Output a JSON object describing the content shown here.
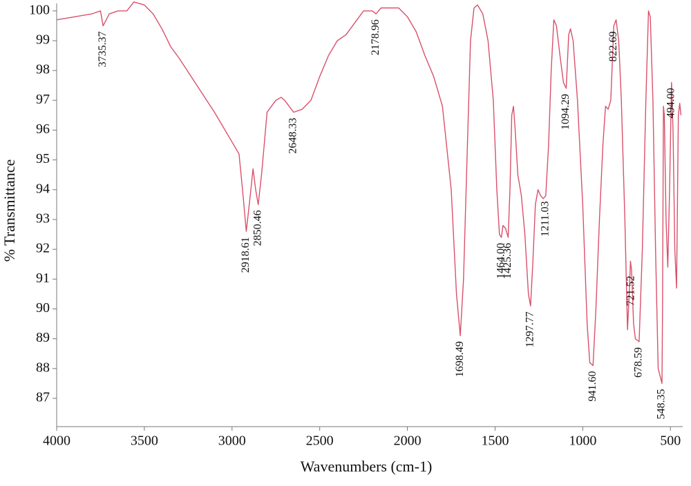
{
  "chart_data": {
    "type": "line",
    "xlabel": "Wavenumbers (cm-1)",
    "ylabel": "% Transmittance",
    "color": "#d9506a",
    "xlim": [
      4000,
      430
    ],
    "ylim": [
      86.05,
      100.25
    ],
    "xticks": [
      4000,
      3500,
      3000,
      2500,
      2000,
      1500,
      1000,
      500
    ],
    "yticks": [
      87,
      88,
      89,
      90,
      91,
      92,
      93,
      94,
      95,
      96,
      97,
      98,
      99,
      100
    ],
    "x": [
      4000,
      3900,
      3800,
      3750,
      3735.37,
      3700,
      3650,
      3600,
      3560,
      3500,
      3450,
      3400,
      3350,
      3300,
      3200,
      3100,
      3000,
      2960,
      2940,
      2918.61,
      2900,
      2880,
      2865,
      2850.46,
      2830,
      2800,
      2750,
      2720,
      2700,
      2648.33,
      2600,
      2550,
      2500,
      2450,
      2400,
      2350,
      2300,
      2250,
      2200,
      2178.96,
      2150,
      2100,
      2050,
      2000,
      1950,
      1900,
      1850,
      1800,
      1750,
      1720,
      1698.49,
      1680,
      1660,
      1640,
      1620,
      1600,
      1570,
      1540,
      1510,
      1490,
      1475,
      1464,
      1455,
      1440,
      1425.36,
      1415,
      1405,
      1395,
      1385,
      1370,
      1350,
      1330,
      1310,
      1297.77,
      1285,
      1270,
      1255,
      1240,
      1225,
      1211.03,
      1195,
      1180,
      1165,
      1150,
      1130,
      1110,
      1094.29,
      1080,
      1070,
      1055,
      1030,
      1000,
      975,
      960,
      941.6,
      925,
      905,
      885,
      870,
      855,
      840,
      822.69,
      810,
      795,
      780,
      760,
      745,
      735,
      728,
      721.52,
      710,
      700,
      678.59,
      660,
      640,
      625,
      615,
      600,
      585,
      570,
      548.35,
      545,
      540,
      535,
      525,
      515,
      505,
      494,
      485,
      475,
      465,
      455,
      447,
      440
    ],
    "values": [
      99.7,
      99.8,
      99.9,
      100.0,
      99.5,
      99.9,
      100.0,
      100.0,
      100.3,
      100.2,
      99.9,
      99.4,
      98.8,
      98.4,
      97.5,
      96.6,
      95.6,
      95.2,
      94.0,
      92.6,
      93.6,
      94.7,
      94.0,
      93.5,
      94.6,
      96.6,
      97.0,
      97.1,
      97.0,
      96.6,
      96.7,
      97.0,
      97.8,
      98.5,
      99.0,
      99.2,
      99.6,
      100.0,
      100.0,
      99.9,
      100.1,
      100.1,
      100.1,
      99.8,
      99.3,
      98.5,
      97.8,
      96.8,
      94.0,
      90.5,
      89.1,
      91.0,
      95.0,
      99.0,
      100.1,
      100.2,
      99.9,
      99.0,
      97.0,
      94.0,
      92.5,
      92.4,
      92.8,
      92.7,
      92.4,
      94.0,
      96.5,
      96.8,
      96.0,
      94.5,
      93.8,
      92.5,
      90.5,
      90.1,
      91.5,
      93.5,
      94.0,
      93.8,
      93.7,
      93.8,
      95.5,
      98.0,
      99.7,
      99.5,
      98.5,
      97.6,
      97.4,
      99.2,
      99.4,
      99.0,
      97.0,
      93.5,
      89.5,
      88.2,
      88.1,
      90.0,
      93.0,
      95.5,
      96.8,
      96.7,
      97.0,
      99.5,
      99.7,
      99.0,
      97.0,
      93.0,
      89.3,
      90.5,
      91.6,
      91.3,
      89.5,
      89.0,
      88.9,
      92.0,
      97.0,
      100.0,
      99.8,
      97.0,
      92.0,
      88.0,
      87.5,
      90.0,
      96.8,
      96.5,
      93.0,
      91.4,
      94.0,
      97.6,
      96.0,
      92.0,
      90.7,
      96.5,
      96.9,
      96.5
    ],
    "annotations": [
      {
        "x": 3735.37,
        "label": "3735.37"
      },
      {
        "x": 2918.61,
        "label": "2918.61"
      },
      {
        "x": 2850.46,
        "label": "2850.46"
      },
      {
        "x": 2648.33,
        "label": "2648.33"
      },
      {
        "x": 2178.96,
        "label": "2178.96"
      },
      {
        "x": 1698.49,
        "label": "1698.49"
      },
      {
        "x": 1464,
        "label": "1464.00"
      },
      {
        "x": 1425.36,
        "label": "1425.36"
      },
      {
        "x": 1297.77,
        "label": "1297.77"
      },
      {
        "x": 1211.03,
        "label": "1211.03"
      },
      {
        "x": 1094.29,
        "label": "1094.29"
      },
      {
        "x": 941.6,
        "label": "941.60"
      },
      {
        "x": 822.69,
        "label": "822.69"
      },
      {
        "x": 721.52,
        "label": "721.52"
      },
      {
        "x": 678.59,
        "label": "678.59"
      },
      {
        "x": 548.35,
        "label": "548.35"
      },
      {
        "x": 494,
        "label": "494.00"
      }
    ]
  }
}
